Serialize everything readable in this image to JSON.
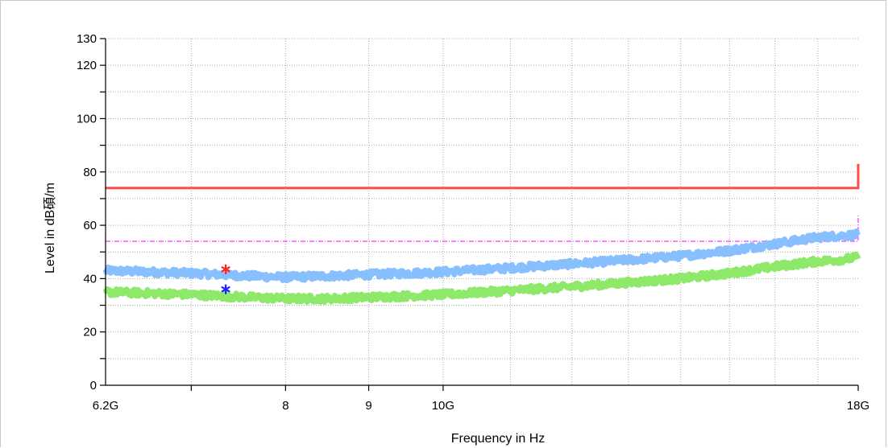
{
  "chart_data": {
    "type": "line",
    "xlabel": "Frequency in Hz",
    "ylabel": "Level in dB碩/m",
    "x_scale": "log",
    "xlim_hz": [
      6200000000,
      18000000000
    ],
    "ylim": [
      0,
      130
    ],
    "grid": true,
    "y_tick_labels": [
      {
        "value": 0,
        "label": "0"
      },
      {
        "value": 20,
        "label": "20"
      },
      {
        "value": 40,
        "label": "40"
      },
      {
        "value": 60,
        "label": "60"
      },
      {
        "value": 80,
        "label": "80"
      },
      {
        "value": 100,
        "label": "100"
      },
      {
        "value": 120,
        "label": "120"
      },
      {
        "value": 130,
        "label": "130"
      }
    ],
    "x_tick_labels": [
      {
        "hz": 6200000000,
        "label": "6.2G"
      },
      {
        "hz": 8000000000,
        "label": "8"
      },
      {
        "hz": 9000000000,
        "label": "9"
      },
      {
        "hz": 10000000000,
        "label": "10G"
      },
      {
        "hz": 18000000000,
        "label": "18G"
      }
    ],
    "series": [
      {
        "color": "#ff4a4a",
        "style": "solid",
        "step_hz": 18000000000,
        "points": [
          [
            6200000000,
            74
          ],
          [
            18000000000,
            74
          ],
          [
            18000000000,
            83
          ]
        ]
      },
      {
        "color": "#ff33ff",
        "style": "dashdot",
        "step_hz": 18000000000,
        "points": [
          [
            6200000000,
            54
          ],
          [
            18000000000,
            54
          ],
          [
            18000000000,
            64
          ]
        ]
      },
      {
        "color": "#88bfff",
        "style": "noisy-band",
        "points": [
          [
            6200000000,
            43
          ],
          [
            6600000000,
            42.5
          ],
          [
            7000000000,
            42
          ],
          [
            7300000000,
            41.5
          ],
          [
            7600000000,
            41
          ],
          [
            8000000000,
            40.5
          ],
          [
            8500000000,
            41
          ],
          [
            9000000000,
            41.5
          ],
          [
            9500000000,
            42
          ],
          [
            10000000000,
            42.5
          ],
          [
            11000000000,
            44
          ],
          [
            12000000000,
            45.5
          ],
          [
            13000000000,
            47
          ],
          [
            14000000000,
            48.5
          ],
          [
            15000000000,
            50.5
          ],
          [
            16000000000,
            53
          ],
          [
            17000000000,
            55.5
          ],
          [
            17500000000,
            56
          ],
          [
            18000000000,
            56.5
          ]
        ]
      },
      {
        "color": "#8ee86a",
        "style": "noisy-band",
        "points": [
          [
            6200000000,
            35
          ],
          [
            6600000000,
            34.5
          ],
          [
            7000000000,
            34
          ],
          [
            7300000000,
            33.5
          ],
          [
            7600000000,
            33
          ],
          [
            8000000000,
            32.5
          ],
          [
            8500000000,
            32.5
          ],
          [
            9000000000,
            33
          ],
          [
            9500000000,
            33.5
          ],
          [
            10000000000,
            34
          ],
          [
            11000000000,
            35.5
          ],
          [
            12000000000,
            37
          ],
          [
            13000000000,
            38.5
          ],
          [
            14000000000,
            40
          ],
          [
            15000000000,
            42
          ],
          [
            16000000000,
            44.5
          ],
          [
            17000000000,
            46.5
          ],
          [
            17500000000,
            47
          ],
          [
            18000000000,
            48
          ]
        ]
      }
    ],
    "markers": [
      {
        "hz": 7350000000,
        "y": 43.5,
        "symbol": "*",
        "color": "#ff2020"
      },
      {
        "hz": 7350000000,
        "y": 36,
        "symbol": "*",
        "color": "#2020ff"
      }
    ],
    "extra_y_gridlines": [
      10,
      30,
      50,
      70,
      90,
      110
    ]
  }
}
